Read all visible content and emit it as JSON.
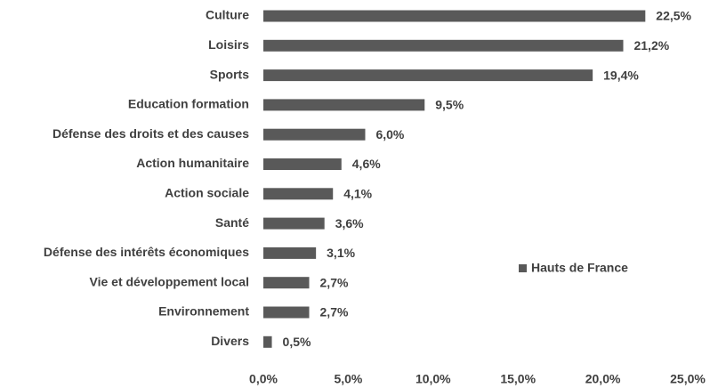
{
  "chart_data": {
    "type": "bar",
    "orientation": "horizontal",
    "categories": [
      "Culture",
      "Loisirs",
      "Sports",
      "Education formation",
      "Défense des droits et des causes",
      "Action humanitaire",
      "Action sociale",
      "Santé",
      "Défense des intérêts économiques",
      "Vie et développement local",
      "Environnement",
      "Divers"
    ],
    "series": [
      {
        "name": "Hauts de France",
        "color": "#595959",
        "values": [
          22.5,
          21.2,
          19.4,
          9.5,
          6.0,
          4.6,
          4.1,
          3.6,
          3.1,
          2.7,
          2.7,
          0.5
        ],
        "value_labels": [
          "22,5%",
          "21,2%",
          "19,4%",
          "9,5%",
          "6,0%",
          "4,6%",
          "4,1%",
          "3,6%",
          "3,1%",
          "2,7%",
          "2,7%",
          "0,5%"
        ]
      }
    ],
    "xlim": [
      0,
      25
    ],
    "xticks": [
      {
        "value": 0,
        "label": "0,0%"
      },
      {
        "value": 5,
        "label": "5,0%"
      },
      {
        "value": 10,
        "label": "10,0%"
      },
      {
        "value": 15,
        "label": "15,0%"
      },
      {
        "value": 20,
        "label": "20,0%"
      },
      {
        "value": 25,
        "label": "25,0%"
      }
    ],
    "grid": false
  }
}
